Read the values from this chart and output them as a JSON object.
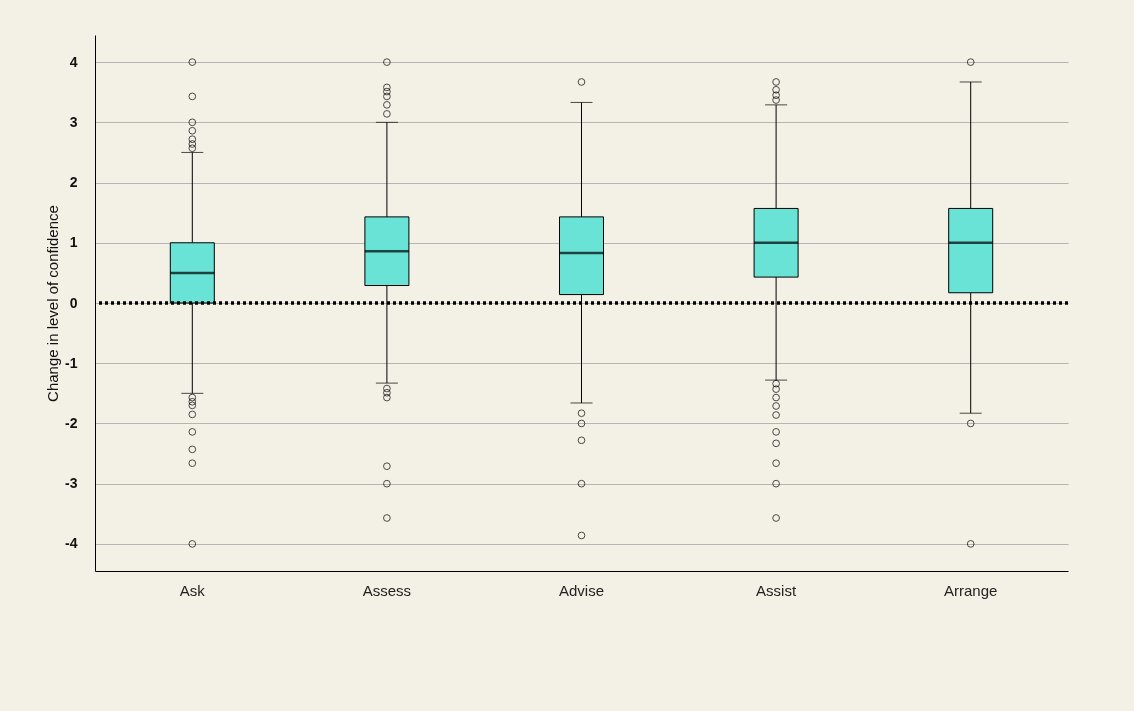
{
  "chart_data": {
    "type": "box",
    "ylabel": "Change in level of confidence",
    "categories": [
      "Ask",
      "Assess",
      "Advise",
      "Assist",
      "Arrange"
    ],
    "color": "#6ae3d7",
    "boxes": [
      {
        "low": -1.5,
        "q1": 0.0,
        "median": 0.5,
        "q3": 1.0,
        "high": 2.5,
        "outliers": [
          4.0,
          3.43,
          3.0,
          2.86,
          2.72,
          2.64,
          2.57,
          -1.57,
          -1.64,
          -1.7,
          -1.85,
          -2.14,
          -2.43,
          -2.66,
          -4.0
        ]
      },
      {
        "low": -1.33,
        "q1": 0.29,
        "median": 0.86,
        "q3": 1.43,
        "high": 3.0,
        "outliers": [
          4.0,
          3.58,
          3.51,
          3.43,
          3.29,
          3.14,
          -1.42,
          -1.49,
          -1.57,
          -2.71,
          -3.0,
          -3.57
        ]
      },
      {
        "low": -1.66,
        "q1": 0.14,
        "median": 0.83,
        "q3": 1.43,
        "high": 3.33,
        "outliers": [
          3.67,
          -1.83,
          -2.0,
          -2.28,
          -3.0,
          -3.86
        ]
      },
      {
        "low": -1.28,
        "q1": 0.43,
        "median": 1.0,
        "q3": 1.57,
        "high": 3.29,
        "outliers": [
          3.67,
          3.54,
          3.45,
          3.37,
          -1.34,
          -1.43,
          -1.57,
          -1.71,
          -1.86,
          -2.14,
          -2.33,
          -2.66,
          -3.0,
          -3.57
        ]
      },
      {
        "low": -1.83,
        "q1": 0.17,
        "median": 1.0,
        "q3": 1.57,
        "high": 3.67,
        "outliers": [
          4.0,
          -2.0,
          -4.0
        ]
      }
    ],
    "ylim": [
      -4.45,
      4.45
    ],
    "yticks": [
      -4,
      -3,
      -2,
      -1,
      0,
      1,
      2,
      3,
      4
    ],
    "grid": "y",
    "ref_lines": [
      {
        "axis": "y",
        "value": 0,
        "color": "#000000",
        "line_style": "dotted"
      }
    ]
  }
}
